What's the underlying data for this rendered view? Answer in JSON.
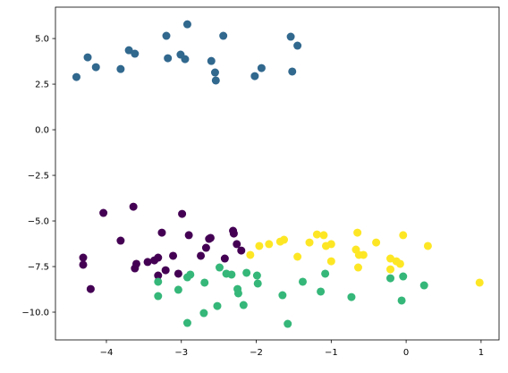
{
  "chart_data": {
    "type": "scatter",
    "xlim": [
      -4.68,
      1.24
    ],
    "ylim": [
      -11.52,
      6.72
    ],
    "xticks": [
      {
        "value": -4,
        "label": "−4"
      },
      {
        "value": -3,
        "label": "−3"
      },
      {
        "value": -2,
        "label": "−2"
      },
      {
        "value": -1,
        "label": "−1"
      },
      0,
      1
    ],
    "yticks": [
      {
        "value": -10,
        "label": "−10.0"
      },
      {
        "value": -7.5,
        "label": "−7.5"
      },
      {
        "value": -5,
        "label": "−5.0"
      },
      {
        "value": -2.5,
        "label": "−2.5"
      },
      {
        "value": 0,
        "label": "0.0"
      },
      {
        "value": 2.5,
        "label": "2.5"
      },
      {
        "value": 5,
        "label": "5.0"
      }
    ],
    "grid": false,
    "series": [
      {
        "color": "#31688e",
        "x": [
          -4.4,
          -4.25,
          -4.14,
          -3.81,
          -3.7,
          -3.62,
          -3.2,
          -3.18,
          -2.92,
          -3.01,
          -2.95,
          -2.6,
          -2.55,
          -2.54,
          -2.44,
          -2.02,
          -1.93,
          -1.54,
          -1.45,
          -1.52
        ],
        "values": [
          2.89,
          3.97,
          3.43,
          3.33,
          4.36,
          4.17,
          5.15,
          3.92,
          5.78,
          4.12,
          3.87,
          3.77,
          3.14,
          2.7,
          5.15,
          2.94,
          3.38,
          5.1,
          4.61,
          3.19
        ]
      },
      {
        "color": "#440154",
        "x": [
          -4.31,
          -4.31,
          -4.21,
          -4.04,
          -3.81,
          -3.64,
          -3.6,
          -3.62,
          -3.45,
          -3.36,
          -3.31,
          -3.31,
          -3.26,
          -3.21,
          -3.11,
          -2.99,
          -2.9,
          -2.74,
          -2.67,
          -2.63,
          -2.61,
          -2.42,
          -2.31,
          -2.3,
          -2.26,
          -2.2,
          -3.04
        ],
        "values": [
          -7.01,
          -7.4,
          -8.73,
          -4.56,
          -6.08,
          -4.22,
          -7.35,
          -7.6,
          -7.25,
          -7.16,
          -7.01,
          -7.99,
          -5.64,
          -7.7,
          -6.91,
          -4.61,
          -5.78,
          -6.91,
          -6.47,
          -5.98,
          -5.93,
          -7.06,
          -5.54,
          -5.69,
          -6.27,
          -6.62,
          -7.89
        ]
      },
      {
        "color": "#35b779",
        "x": [
          -3.31,
          -3.31,
          -3.04,
          -2.92,
          -2.88,
          -2.92,
          -2.69,
          -2.7,
          -2.49,
          -2.52,
          -2.4,
          -2.33,
          -2.25,
          -2.24,
          -2.13,
          -2.17,
          -1.99,
          -1.98,
          -1.65,
          -1.58,
          -1.38,
          -1.08,
          -1.14,
          -0.73,
          -0.21,
          -0.04,
          -0.06,
          0.24
        ],
        "values": [
          -8.33,
          -9.12,
          -8.77,
          -8.09,
          -7.94,
          -10.59,
          -8.38,
          -10.05,
          -7.55,
          -9.66,
          -7.89,
          -7.94,
          -8.73,
          -8.97,
          -7.84,
          -9.61,
          -7.99,
          -8.43,
          -9.07,
          -10.64,
          -8.33,
          -7.89,
          -8.87,
          -9.17,
          -8.14,
          -8.04,
          -9.36,
          -8.53
        ]
      },
      {
        "color": "#fde725",
        "x": [
          -2.08,
          -1.96,
          -1.83,
          -1.68,
          -1.63,
          -1.45,
          -1.29,
          -1.19,
          -1.1,
          -1.07,
          -1.0,
          -1.0,
          -0.65,
          -0.67,
          -0.63,
          -0.64,
          -0.57,
          -0.4,
          -0.21,
          -0.21,
          -0.13,
          -0.08,
          -0.04,
          0.29,
          0.98
        ],
        "values": [
          -6.86,
          -6.37,
          -6.27,
          -6.13,
          -6.03,
          -6.96,
          -6.18,
          -5.74,
          -5.78,
          -6.37,
          -6.27,
          -7.21,
          -5.64,
          -6.57,
          -6.86,
          -7.55,
          -6.86,
          -6.18,
          -7.06,
          -7.65,
          -7.21,
          -7.35,
          -5.78,
          -6.37,
          -8.38
        ]
      }
    ]
  }
}
